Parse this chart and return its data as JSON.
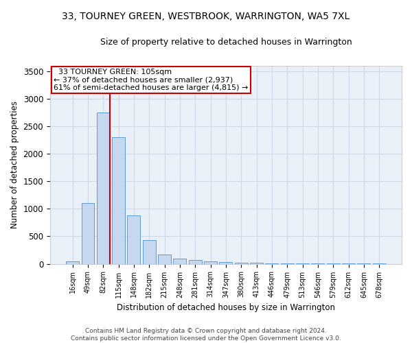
{
  "title": "33, TOURNEY GREEN, WESTBROOK, WARRINGTON, WA5 7XL",
  "subtitle": "Size of property relative to detached houses in Warrington",
  "xlabel": "Distribution of detached houses by size in Warrington",
  "ylabel": "Number of detached properties",
  "categories": [
    "16sqm",
    "49sqm",
    "82sqm",
    "115sqm",
    "148sqm",
    "182sqm",
    "215sqm",
    "248sqm",
    "281sqm",
    "314sqm",
    "347sqm",
    "380sqm",
    "413sqm",
    "446sqm",
    "479sqm",
    "513sqm",
    "546sqm",
    "579sqm",
    "612sqm",
    "645sqm",
    "678sqm"
  ],
  "values": [
    50,
    1100,
    2750,
    2300,
    880,
    430,
    170,
    100,
    65,
    50,
    35,
    25,
    20,
    10,
    5,
    3,
    2,
    2,
    1,
    1,
    1
  ],
  "bar_color": "#c5d8f0",
  "bar_edge_color": "#5b9bd5",
  "vline_color": "#cc0000",
  "vline_pos": 2.425,
  "annotation_text": "  33 TOURNEY GREEN: 105sqm\n← 37% of detached houses are smaller (2,937)\n61% of semi-detached houses are larger (4,815) →",
  "annotation_box_color": "#cc0000",
  "ylim": [
    0,
    3600
  ],
  "yticks": [
    0,
    500,
    1000,
    1500,
    2000,
    2500,
    3000,
    3500
  ],
  "grid_color": "#d0d8e8",
  "bg_color": "#eaf0f8",
  "footer": "Contains HM Land Registry data © Crown copyright and database right 2024.\nContains public sector information licensed under the Open Government Licence v3.0."
}
